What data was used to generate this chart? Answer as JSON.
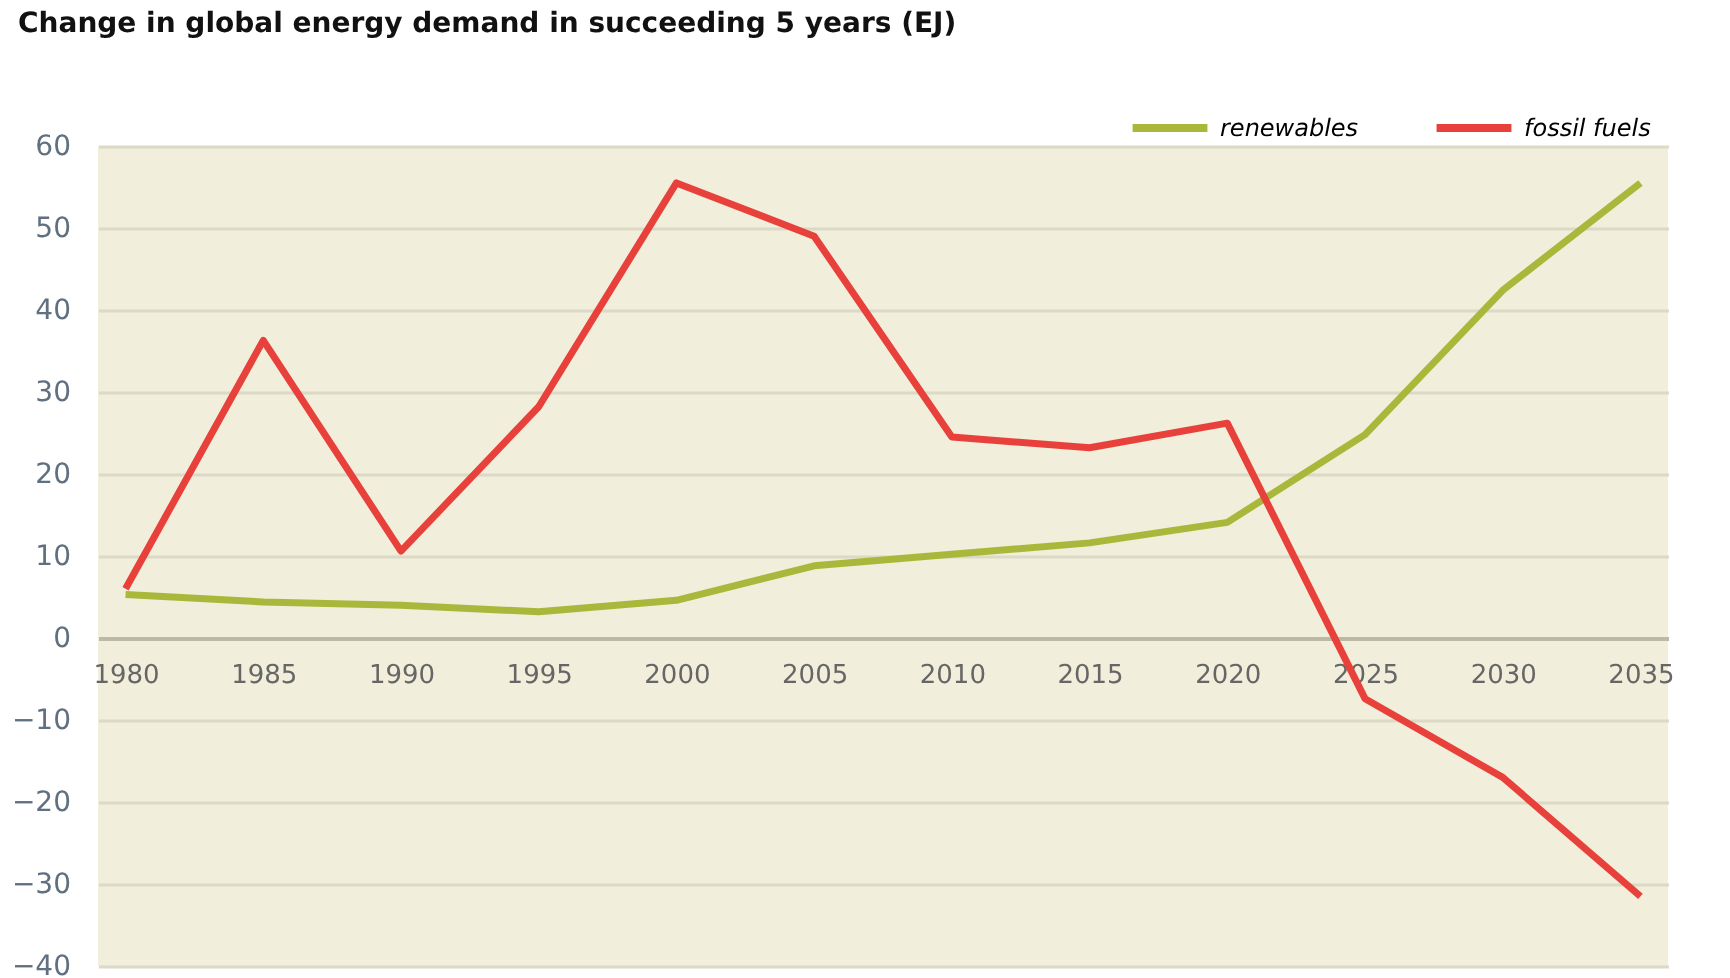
{
  "chart_data": {
    "type": "line",
    "title": "Change in global energy demand in succeeding 5 years (EJ)",
    "x": [
      1980,
      1985,
      1990,
      1995,
      2000,
      2005,
      2010,
      2015,
      2020,
      2025,
      2030,
      2035
    ],
    "series": [
      {
        "name": "renewables",
        "color": "#a9b83a",
        "values": [
          5.3,
          4.4,
          4,
          3.2,
          4.6,
          8.8,
          10.2,
          11.6,
          14.1,
          24.8,
          42.4,
          55.5
        ]
      },
      {
        "name": "fossil fuels",
        "color": "#e8413c",
        "values": [
          6,
          36.3,
          10.6,
          28.2,
          55.5,
          49,
          24.5,
          23.2,
          26.2,
          -7.4,
          -17,
          -31.5
        ]
      }
    ],
    "xlim": [
      1979,
      2036
    ],
    "xticks": [
      1980,
      1985,
      1990,
      1995,
      2000,
      2005,
      2010,
      2015,
      2020,
      2025,
      2030,
      2035
    ],
    "ylim": [
      -40,
      60
    ],
    "yticks": [
      -40,
      -30,
      -20,
      -10,
      0,
      10,
      20,
      30,
      40,
      50,
      60
    ],
    "grid": "y",
    "legend": "top right",
    "marker": "none",
    "line_style": "solid"
  }
}
